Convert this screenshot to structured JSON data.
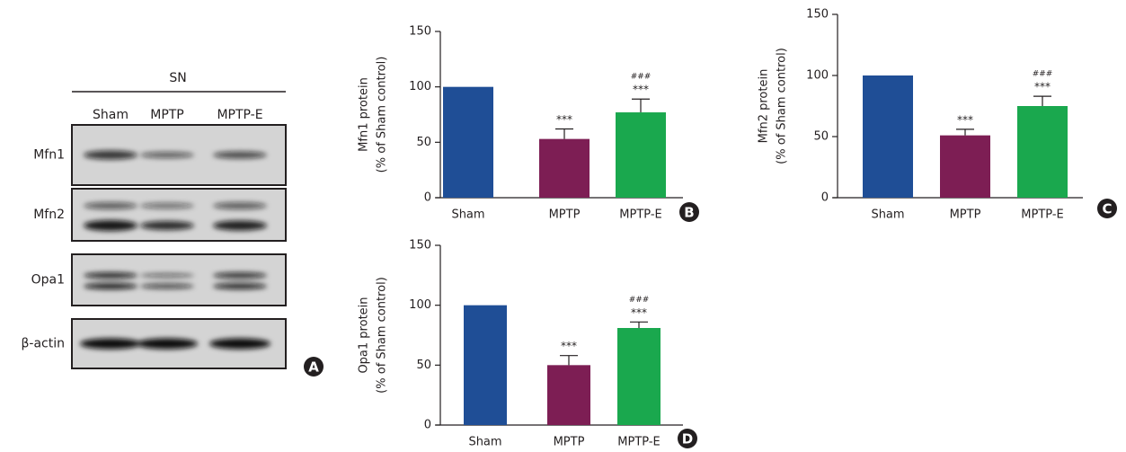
{
  "blot": {
    "region": "SN",
    "lanes": [
      "Sham",
      "MPTP",
      "MPTP-E"
    ],
    "rows": [
      "Mfn1",
      "Mfn2",
      "Opa1",
      "β-actin"
    ],
    "panel": "A"
  },
  "chart_data": [
    {
      "type": "bar",
      "panel": "B",
      "ylabel": [
        "Mfn1 protein",
        "(% of Sham control)"
      ],
      "categories": [
        "Sham",
        "MPTP",
        "MPTP-E"
      ],
      "values": [
        100,
        53,
        77
      ],
      "errors": [
        0,
        9,
        12
      ],
      "colors": [
        "#1f4e96",
        "#7d1e54",
        "#1aa84e"
      ],
      "significance": [
        null,
        "***",
        "***"
      ],
      "significance2": [
        null,
        null,
        "###"
      ],
      "ylim": [
        0,
        150
      ],
      "yticks": [
        0,
        50,
        100,
        150
      ]
    },
    {
      "type": "bar",
      "panel": "C",
      "ylabel": [
        "Mfn2 protein",
        "(% of Sham control)"
      ],
      "categories": [
        "Sham",
        "MPTP",
        "MPTP-E"
      ],
      "values": [
        100,
        51,
        75
      ],
      "errors": [
        0,
        5,
        8
      ],
      "colors": [
        "#1f4e96",
        "#7d1e54",
        "#1aa84e"
      ],
      "significance": [
        null,
        "***",
        "***"
      ],
      "significance2": [
        null,
        null,
        "###"
      ],
      "ylim": [
        0,
        150
      ],
      "yticks": [
        0,
        50,
        100,
        150
      ]
    },
    {
      "type": "bar",
      "panel": "D",
      "ylabel": [
        "Opa1 protein",
        "(% of Sham control)"
      ],
      "categories": [
        "Sham",
        "MPTP",
        "MPTP-E"
      ],
      "values": [
        100,
        50,
        81
      ],
      "errors": [
        0,
        8,
        5
      ],
      "colors": [
        "#1f4e96",
        "#7d1e54",
        "#1aa84e"
      ],
      "significance": [
        null,
        "***",
        "***"
      ],
      "significance2": [
        null,
        null,
        "###"
      ],
      "ylim": [
        0,
        150
      ],
      "yticks": [
        0,
        50,
        100,
        150
      ]
    }
  ]
}
